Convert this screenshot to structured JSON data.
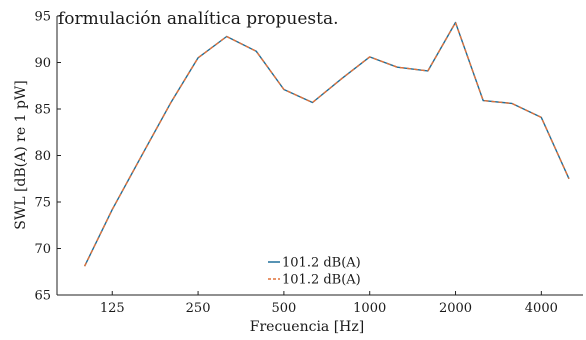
{
  "header_fragment": "formulación analítica propuesta.",
  "chart_data": {
    "type": "line",
    "xlabel": "Frecuencia [Hz]",
    "ylabel": "SWL [dB(A) re 1 pW]",
    "x_scale": "log",
    "x": [
      100,
      125,
      160,
      200,
      250,
      315,
      400,
      500,
      630,
      800,
      1000,
      1250,
      1600,
      2000,
      2500,
      3150,
      4000,
      5000
    ],
    "x_ticks": [
      125,
      250,
      500,
      1000,
      2000,
      4000
    ],
    "x_tick_labels": [
      "125",
      "250",
      "500",
      "1000",
      "2000",
      "4000"
    ],
    "xlim": [
      80,
      5600
    ],
    "ylim": [
      65,
      95
    ],
    "y_ticks": [
      65,
      70,
      75,
      80,
      85,
      90,
      95
    ],
    "y_tick_labels": [
      "65",
      "70",
      "75",
      "80",
      "85",
      "90",
      "95"
    ],
    "series": [
      {
        "name": "101.2 dB(A)",
        "color": "#1f6f9a",
        "style": "solid",
        "values": [
          68.1,
          74.2,
          80.2,
          85.6,
          90.5,
          92.8,
          91.2,
          87.1,
          85.7,
          88.3,
          90.6,
          89.5,
          89.1,
          94.3,
          85.9,
          85.6,
          84.1,
          77.5
        ]
      },
      {
        "name": "101.2 dB(A)",
        "color": "#e0723a",
        "style": "dashed",
        "values": [
          68.1,
          74.2,
          80.2,
          85.6,
          90.5,
          92.8,
          91.2,
          87.1,
          85.7,
          88.3,
          90.6,
          89.5,
          89.1,
          94.3,
          85.9,
          85.6,
          84.1,
          77.5
        ]
      }
    ],
    "grid": false,
    "legend_position": "bottom-center"
  }
}
